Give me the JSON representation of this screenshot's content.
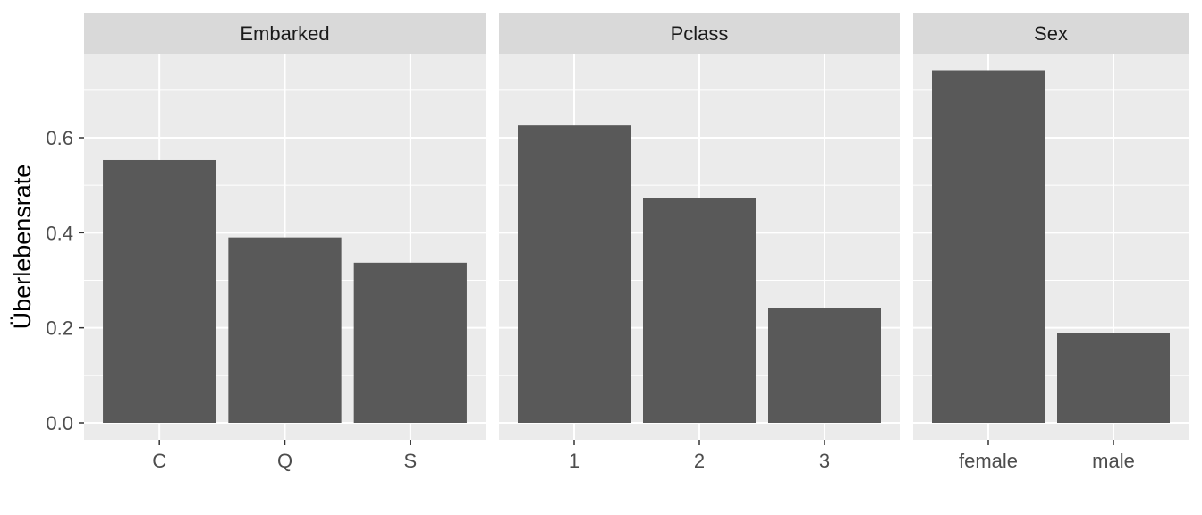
{
  "chart_data": {
    "type": "bar",
    "ylabel": "Überlebensrate",
    "xlabel": "",
    "ylim": [
      0,
      0.78
    ],
    "yticks": [
      0.0,
      0.2,
      0.4,
      0.6
    ],
    "ytick_labels": [
      "0.0",
      "0.2",
      "0.4",
      "0.6"
    ],
    "grid": true,
    "bar_color": "#595959",
    "panel_bg": "#ebebeb",
    "strip_bg": "#d9d9d9",
    "facets": [
      {
        "strip": "Embarked",
        "categories": [
          "C",
          "Q",
          "S"
        ],
        "values": [
          0.553,
          0.39,
          0.337
        ]
      },
      {
        "strip": "Pclass",
        "categories": [
          "1",
          "2",
          "3"
        ],
        "values": [
          0.626,
          0.473,
          0.242
        ]
      },
      {
        "strip": "Sex",
        "categories": [
          "female",
          "male"
        ],
        "values": [
          0.742,
          0.189
        ]
      }
    ]
  }
}
